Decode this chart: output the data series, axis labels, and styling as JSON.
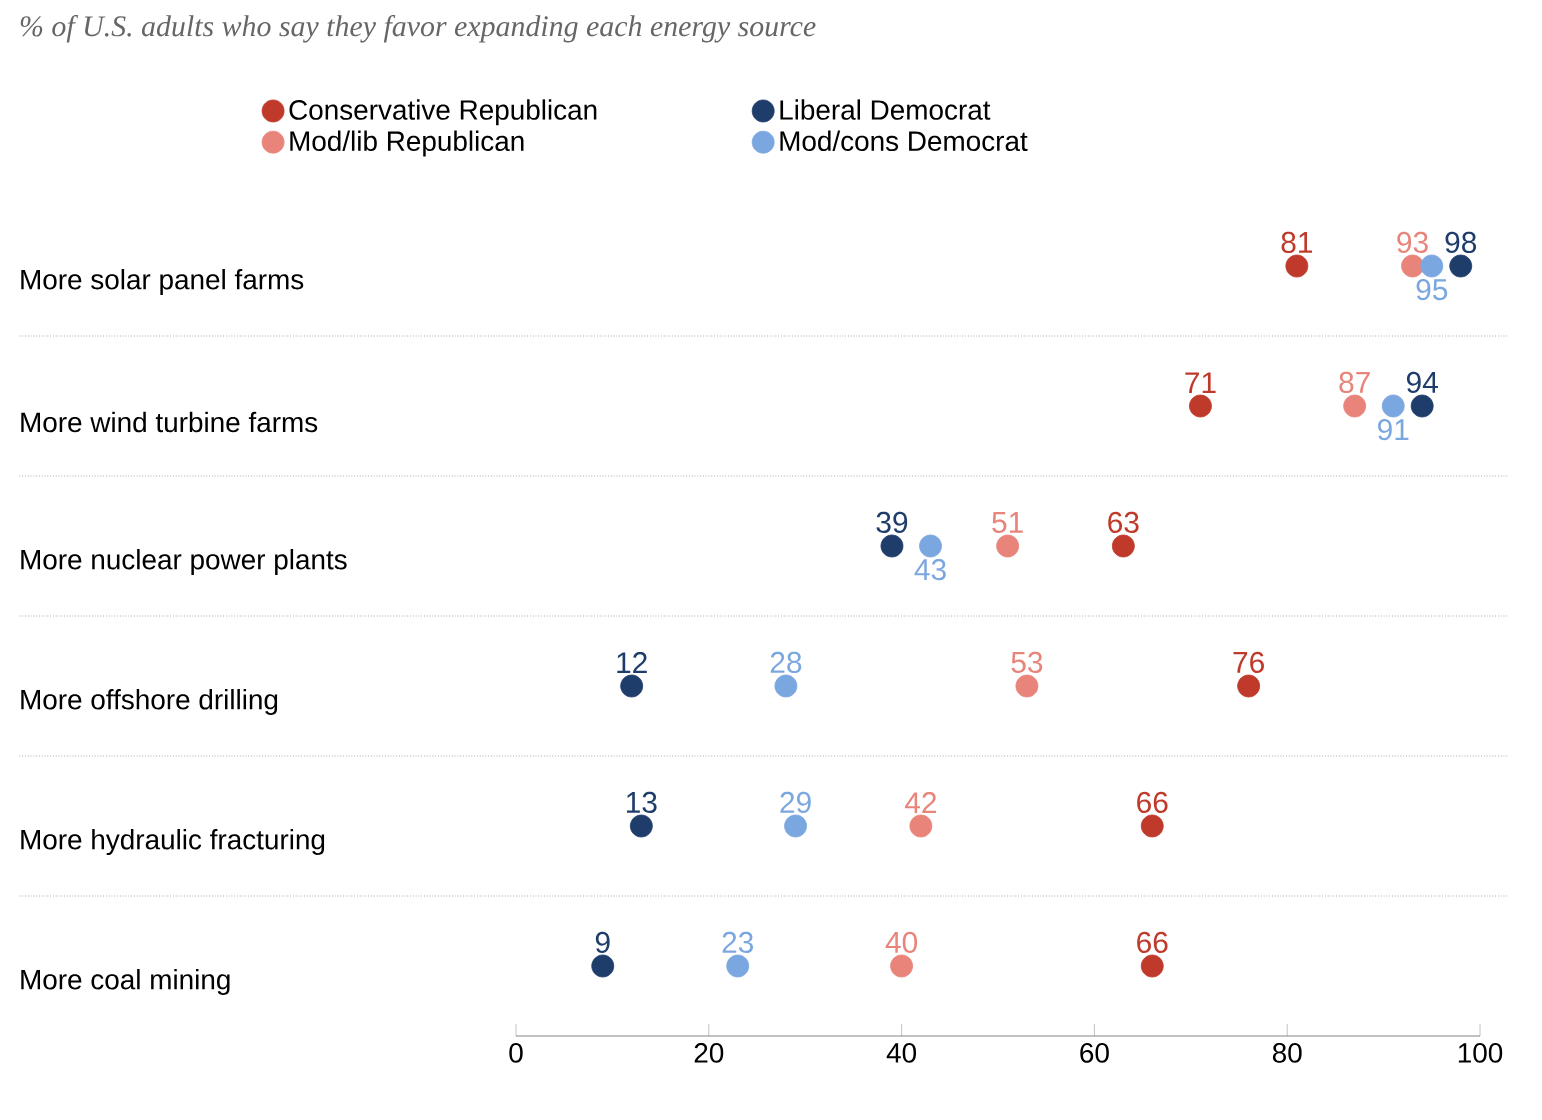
{
  "chart_data": {
    "type": "scatter",
    "orientation": "horizontal",
    "title": "% of U.S. adults who say they favor expanding each energy source",
    "categories": [
      "More solar panel farms",
      "More wind turbine farms",
      "More nuclear power plants",
      "More offshore drilling",
      "More hydraulic fracturing",
      "More coal mining"
    ],
    "series": [
      {
        "name": "Conservative Republican",
        "color": "#bf3a2b",
        "values": [
          81,
          71,
          63,
          76,
          66,
          66
        ]
      },
      {
        "name": "Liberal Democrat",
        "color": "#1f3d6b",
        "values": [
          98,
          94,
          39,
          12,
          13,
          9
        ]
      },
      {
        "name": "Mod/lib Republican",
        "color": "#e8847a",
        "values": [
          93,
          87,
          51,
          53,
          42,
          40
        ]
      },
      {
        "name": "Mod/cons Democrat",
        "color": "#7ba7e0",
        "values": [
          95,
          91,
          43,
          28,
          29,
          23
        ]
      }
    ],
    "xlim": [
      0,
      100
    ],
    "xticks": [
      0,
      20,
      40,
      60,
      80,
      100
    ],
    "data_labels": true,
    "legend": "top",
    "grid": false
  }
}
